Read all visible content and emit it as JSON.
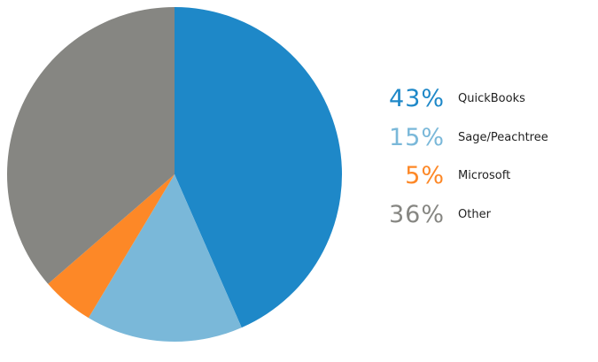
{
  "chart_data": {
    "type": "pie",
    "slices": [
      {
        "label": "QuickBooks",
        "value": 43,
        "value_label": "43%",
        "color": "#1e88c8"
      },
      {
        "label": "Sage/Peachtree",
        "value": 15,
        "value_label": "15%",
        "color": "#7ab8d9"
      },
      {
        "label": "Microsoft",
        "value": 5,
        "value_label": "5%",
        "color": "#fd8827"
      },
      {
        "label": "Other",
        "value": 36,
        "value_label": "36%",
        "color": "#868682"
      }
    ],
    "legend_position": "right",
    "start_angle": "12 o'clock",
    "direction": "clockwise"
  }
}
